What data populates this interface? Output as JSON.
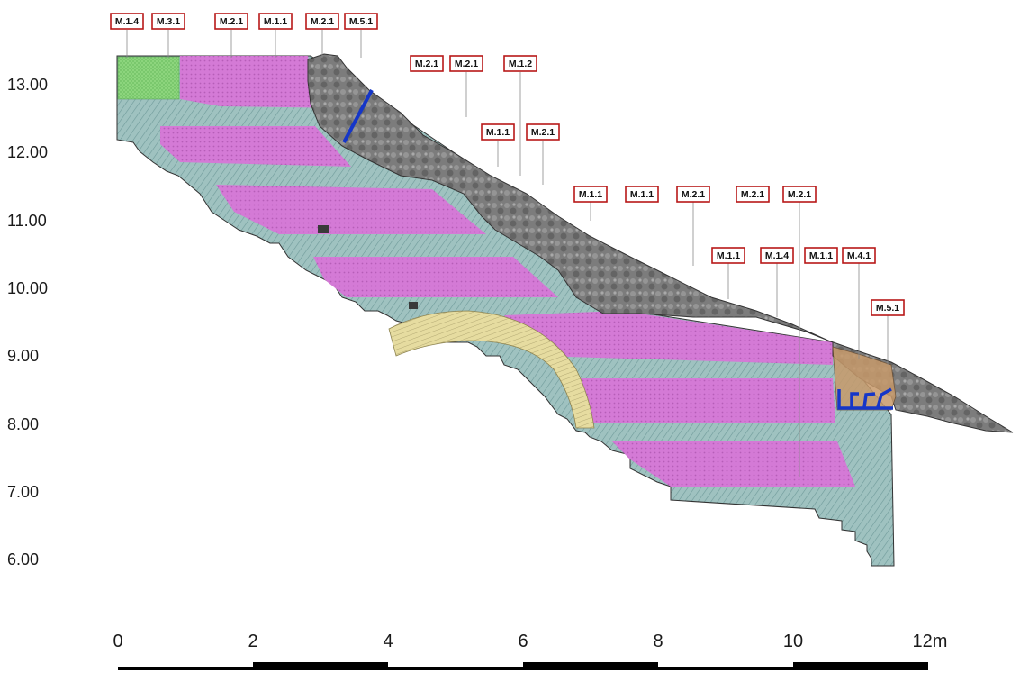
{
  "elevation_axis": {
    "labels": [
      "13.00",
      "12.00",
      "11.00",
      "10.00",
      "9.00",
      "8.00",
      "7.00",
      "6.00"
    ]
  },
  "scale_bar": {
    "labels": [
      "0",
      "2",
      "4",
      "6",
      "8",
      "10",
      "12m"
    ]
  },
  "material_tags": {
    "row1": [
      "M.1.4",
      "M.3.1",
      "M.2.1",
      "M.1.1",
      "M.2.1",
      "M.5.1"
    ],
    "row2": [
      "M.2.1",
      "M.2.1",
      "M.1.2"
    ],
    "row3": [
      "M.1.1",
      "M.2.1"
    ],
    "row4": [
      "M.1.1",
      "M.1.1",
      "M.2.1",
      "M.2.1",
      "M.2.1"
    ],
    "row5": [
      "M.1.1",
      "M.1.4",
      "M.1.1",
      "M.4.1"
    ],
    "row6": [
      "M.5.1"
    ]
  },
  "colors": {
    "masonry_magenta": "#d47ad6",
    "stone_teal": "#9fc2c0",
    "rock_gray": "#7c7c7c",
    "arch_yellow": "#e6dca0",
    "grass_green": "#8fd77f",
    "fill_brown": "#c79a6b",
    "marker_blue": "#1536c8",
    "tag_border": "#b81818"
  }
}
